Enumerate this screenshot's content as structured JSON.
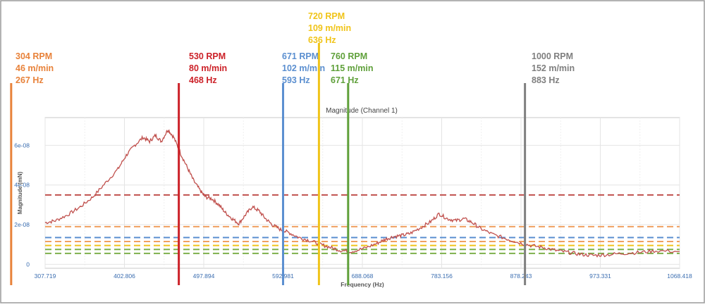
{
  "chart_data": {
    "type": "line",
    "title": "Magnitude (Channel 1)",
    "xlabel": "Frequency (Hz)",
    "ylabel": "Magnitude (mN)",
    "xlim": [
      307.719,
      1068.418
    ],
    "ylim": [
      -2e-09,
      7.4e-08
    ],
    "x_ticks": [
      "307.719",
      "402.806",
      "497.894",
      "592.981",
      "688.068",
      "783.156",
      "878.243",
      "973.331",
      "1068.418"
    ],
    "y_ticks": [
      {
        "label": "0",
        "value": 0
      },
      {
        "label": "2e-08",
        "value": 2e-08
      },
      {
        "label": "4e-08",
        "value": 4e-08
      },
      {
        "label": "6e-08",
        "value": 6e-08
      }
    ],
    "grid": true,
    "series": [
      {
        "color": "#c0504d",
        "x": [
          307.7,
          320,
          335,
          350,
          365,
          380,
          395,
          405,
          415,
          425,
          433,
          440,
          447,
          455,
          462,
          470,
          478,
          486,
          494,
          500,
          508,
          516,
          524,
          532,
          540,
          548,
          556,
          564,
          572,
          580,
          590,
          600,
          612,
          625,
          638,
          650,
          662,
          675,
          690,
          705,
          715,
          725,
          735,
          745,
          758,
          770,
          780,
          790,
          800,
          810,
          820,
          830,
          845,
          860,
          875,
          890,
          905,
          920,
          935,
          950,
          965,
          980,
          1000,
          1020,
          1040,
          1068.4
        ],
        "y": [
          2.1e-08,
          2.2e-08,
          2.5e-08,
          2.9e-08,
          3.4e-08,
          4.1e-08,
          4.8e-08,
          5.5e-08,
          6e-08,
          6.4e-08,
          6.2e-08,
          6.5e-08,
          6.2e-08,
          6.8e-08,
          6.4e-08,
          5.6e-08,
          4.9e-08,
          4.2e-08,
          3.7e-08,
          3.4e-08,
          3.3e-08,
          3e-08,
          2.6e-08,
          2.3e-08,
          2.05e-08,
          2.5e-08,
          2.9e-08,
          2.7e-08,
          2.3e-08,
          2e-08,
          1.75e-08,
          1.6e-08,
          1.35e-08,
          1.2e-08,
          1e-08,
          8.5e-09,
          7e-09,
          6.5e-09,
          8e-09,
          1.05e-08,
          1.25e-08,
          1.4e-08,
          1.45e-08,
          1.55e-08,
          1.85e-08,
          2.15e-08,
          2.55e-08,
          2.3e-08,
          2.2e-08,
          2.3e-08,
          2.1e-08,
          1.8e-08,
          1.5e-08,
          1.3e-08,
          1.1e-08,
          9.5e-09,
          8.5e-09,
          7e-09,
          6e-09,
          5e-09,
          4.5e-09,
          4.8e-09,
          5.5e-09,
          6e-09,
          6.8e-09,
          6.5e-09
        ]
      }
    ],
    "threshold_lines": [
      {
        "value": 3.5e-08,
        "color": "#c0504d"
      },
      {
        "value": 1.9e-08,
        "color": "#f0a060"
      },
      {
        "value": 1.35e-08,
        "color": "#5b8fd0"
      },
      {
        "value": 1.15e-08,
        "color": "#f0a060"
      },
      {
        "value": 9.5e-09,
        "color": "#f0c419"
      },
      {
        "value": 7.5e-09,
        "color": "#7db04b"
      },
      {
        "value": 5.5e-09,
        "color": "#7db04b"
      }
    ]
  },
  "markers": [
    {
      "id": "304",
      "freq": 267,
      "color": "#e8823a",
      "lines": [
        "304 RPM",
        "46 m/min",
        "267 Hz"
      ]
    },
    {
      "id": "530",
      "freq": 468,
      "color": "#cc2128",
      "lines": [
        "530 RPM",
        "80 m/min",
        "468 Hz"
      ]
    },
    {
      "id": "671",
      "freq": 593,
      "color": "#5b8fd0",
      "lines": [
        "671 RPM",
        "102 m/min",
        "593 Hz"
      ]
    },
    {
      "id": "720",
      "freq": 636,
      "color": "#f0c419",
      "lines": [
        "720 RPM",
        "109 m/min",
        "636 Hz"
      ]
    },
    {
      "id": "760",
      "freq": 671,
      "color": "#5fa03a",
      "lines": [
        "760 RPM",
        "115 m/min",
        "671 Hz"
      ]
    },
    {
      "id": "1000",
      "freq": 883,
      "color": "#7f7f7f",
      "lines": [
        "1000 RPM",
        "152 m/min",
        "883 Hz"
      ]
    }
  ]
}
